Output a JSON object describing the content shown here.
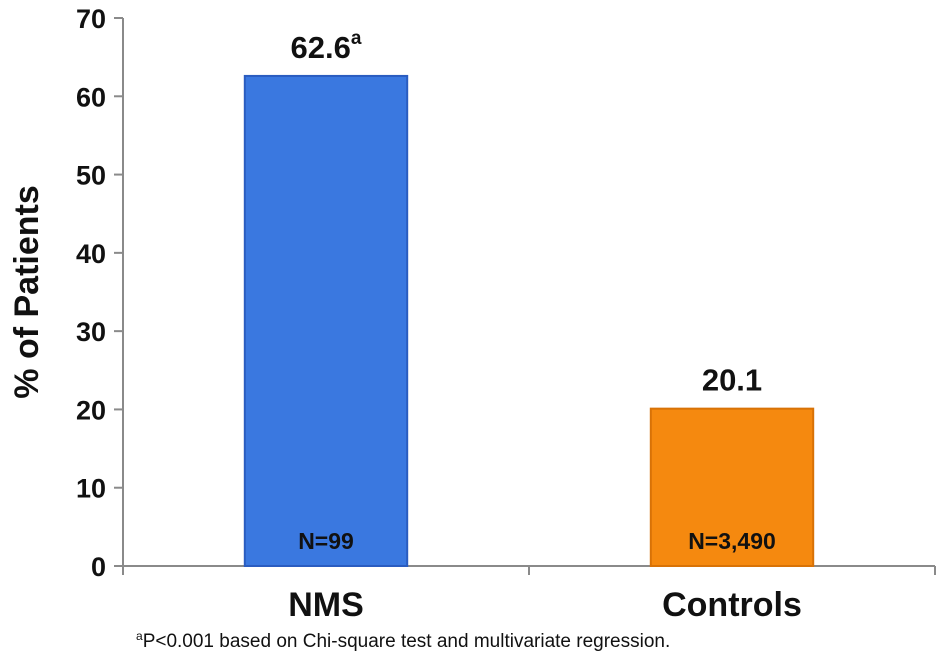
{
  "chart_data": {
    "type": "bar",
    "categories": [
      "NMS",
      "Controls"
    ],
    "values": [
      62.6,
      20.1
    ],
    "value_labels": [
      "62.6",
      "20.1"
    ],
    "value_superscripts": [
      "a",
      ""
    ],
    "n_labels": [
      "N=99",
      "N=3,490"
    ],
    "title": "",
    "xlabel": "",
    "ylabel": "% of Patients",
    "ylim": [
      0,
      70
    ],
    "yticks": [
      0,
      10,
      20,
      30,
      40,
      50,
      60,
      70
    ],
    "bar_colors": [
      "#3a78e0",
      "#f5890f"
    ],
    "bar_edge_colors": [
      "#2a5cc0",
      "#d87206"
    ],
    "grid": false,
    "legend": "none",
    "footnote_marker": "a",
    "footnote": "P<0.001 based on Chi-square test and multivariate regression."
  }
}
